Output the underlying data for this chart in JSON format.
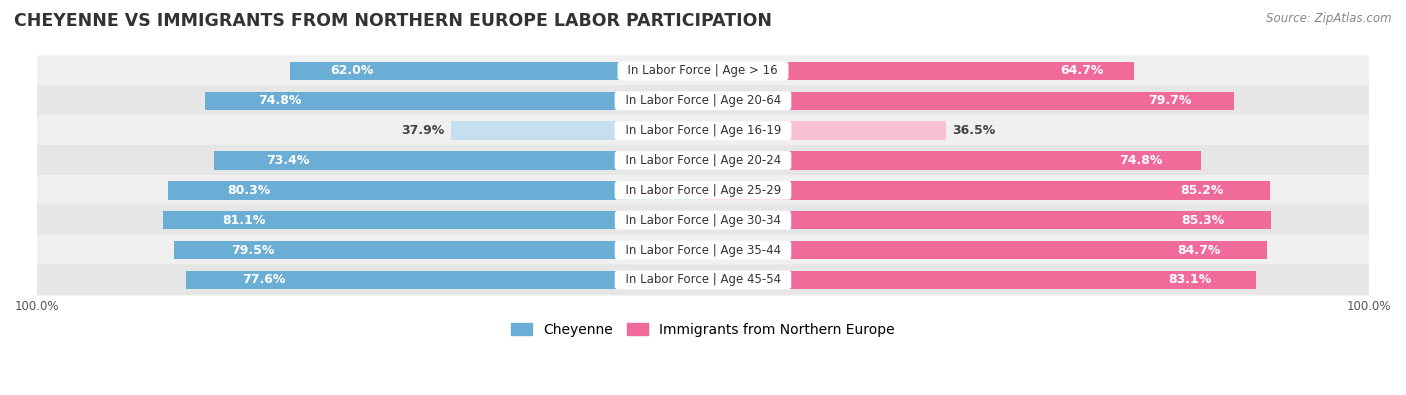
{
  "title": "CHEYENNE VS IMMIGRANTS FROM NORTHERN EUROPE LABOR PARTICIPATION",
  "source": "Source: ZipAtlas.com",
  "categories": [
    "In Labor Force | Age > 16",
    "In Labor Force | Age 20-64",
    "In Labor Force | Age 16-19",
    "In Labor Force | Age 20-24",
    "In Labor Force | Age 25-29",
    "In Labor Force | Age 30-34",
    "In Labor Force | Age 35-44",
    "In Labor Force | Age 45-54"
  ],
  "cheyenne_values": [
    62.0,
    74.8,
    37.9,
    73.4,
    80.3,
    81.1,
    79.5,
    77.6
  ],
  "immigrant_values": [
    64.7,
    79.7,
    36.5,
    74.8,
    85.2,
    85.3,
    84.7,
    83.1
  ],
  "cheyenne_color": "#6aaed6",
  "cheyenne_color_light": "#c5dff0",
  "immigrant_color": "#f06a9a",
  "immigrant_color_light": "#f7c0d5",
  "row_bg_even": "#f0f0f0",
  "row_bg_odd": "#e6e6e6",
  "legend_cheyenne": "Cheyenne",
  "legend_immigrant": "Immigrants from Northern Europe",
  "max_val": 100.0,
  "low_threshold": 50.0,
  "bar_height": 0.62,
  "title_fontsize": 12.5,
  "label_fontsize": 9,
  "category_fontsize": 8.5,
  "legend_fontsize": 10,
  "axis_label_fontsize": 8.5
}
